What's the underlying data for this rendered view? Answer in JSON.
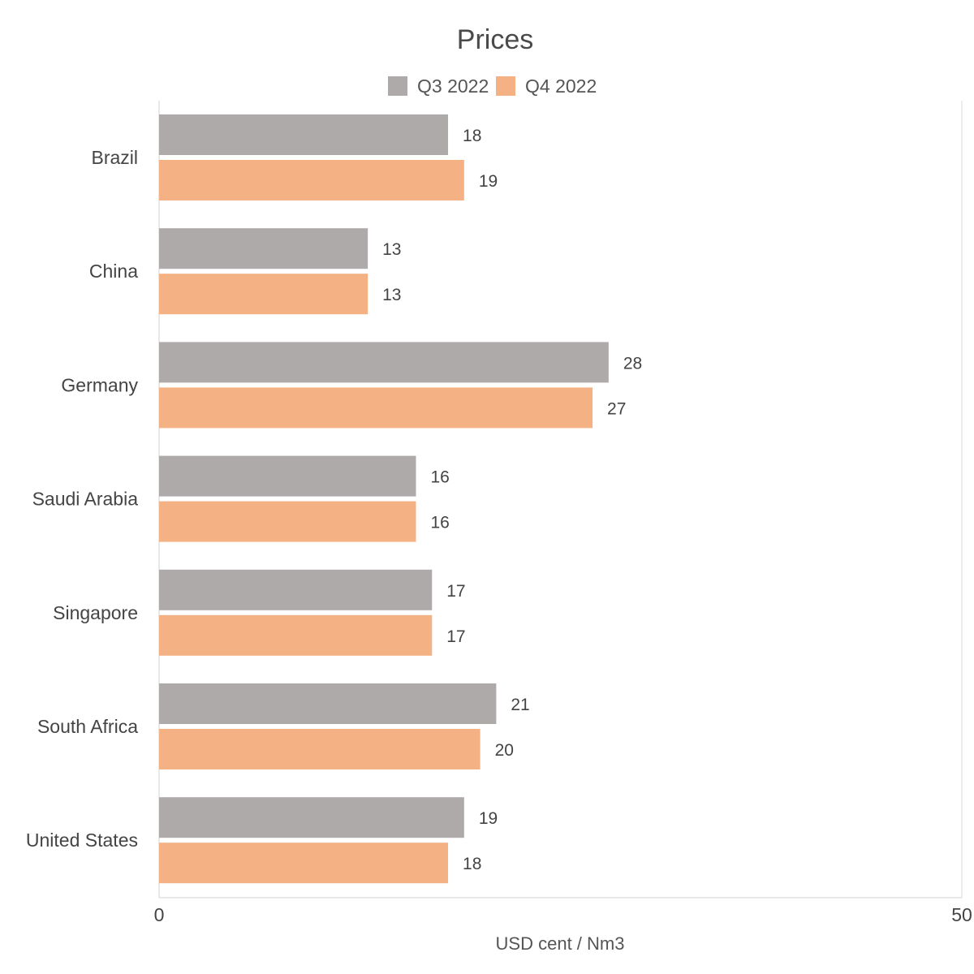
{
  "chart_data": {
    "type": "bar",
    "orientation": "horizontal",
    "title": "Prices",
    "xlabel": "USD cent / Nm3",
    "ylabel": "",
    "xlim": [
      0,
      50
    ],
    "x_ticks": [
      "0",
      "50"
    ],
    "grid": false,
    "legend_position": "top",
    "categories": [
      "Brazil",
      "China",
      "Germany",
      "Saudi Arabia",
      "Singapore",
      "South Africa",
      "United States"
    ],
    "series": [
      {
        "name": "Q3 2022",
        "color": "#aeaaa9",
        "values": [
          18,
          13,
          28,
          16,
          17,
          21,
          19
        ]
      },
      {
        "name": "Q4 2022",
        "color": "#f4b183",
        "values": [
          19,
          13,
          27,
          16,
          17,
          20,
          18
        ]
      }
    ]
  }
}
